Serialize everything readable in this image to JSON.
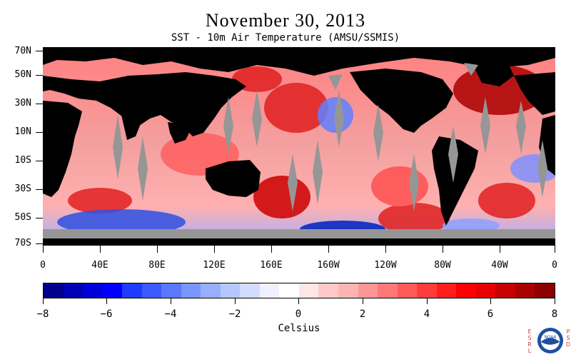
{
  "header": {
    "title": "November 30, 2013",
    "subtitle": "SST - 10m Air Temperature (AMSU/SSMIS)"
  },
  "axes": {
    "lat_labels": [
      "70N",
      "50N",
      "30N",
      "10N",
      "10S",
      "30S",
      "50S",
      "70S"
    ],
    "lon_labels": [
      "0",
      "40E",
      "80E",
      "120E",
      "160E",
      "160W",
      "120W",
      "80W",
      "40W",
      "0"
    ]
  },
  "colorbar": {
    "labels": [
      "−8",
      "−6",
      "−4",
      "−2",
      "0",
      "2",
      "4",
      "6",
      "8"
    ],
    "unit": "Celsius",
    "colors": [
      "#00008c",
      "#0000b4",
      "#0000dc",
      "#0000ff",
      "#1e3cff",
      "#3c5aff",
      "#5a78ff",
      "#7896ff",
      "#96afff",
      "#b4c8ff",
      "#d2dcff",
      "#f0f0ff",
      "#ffffff",
      "#ffe6e6",
      "#ffc8c8",
      "#ffb4b4",
      "#ff9696",
      "#ff7878",
      "#ff5a5a",
      "#ff3c3c",
      "#ff1e1e",
      "#ff0000",
      "#e60000",
      "#c80000",
      "#aa0000",
      "#8c0000"
    ]
  },
  "map_colors": {
    "land": "#000000",
    "ice": "#969696",
    "warm": "#e02020",
    "cool": "#3050e0"
  },
  "logo": {
    "esrl": "ESRL",
    "psd": "PSD",
    "noaa": "NOAA"
  }
}
